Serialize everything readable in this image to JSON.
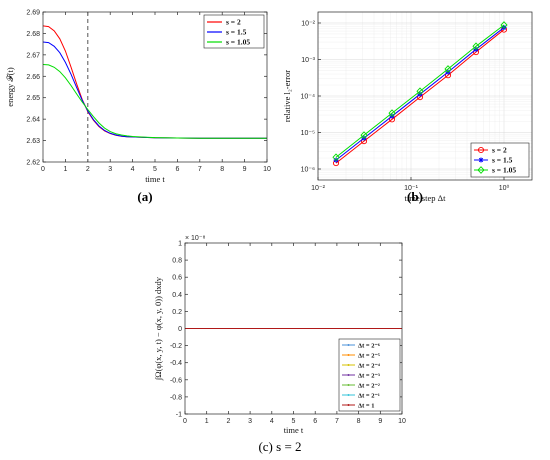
{
  "captions": {
    "a": "(a)",
    "b": "(b)",
    "c": "(c) s = 2"
  },
  "chart_data": [
    {
      "id": "a",
      "type": "line",
      "xlabel": "time t",
      "ylabel": "energy 𝓕(t)",
      "xlim": [
        0,
        10
      ],
      "ylim": [
        2.62,
        2.69
      ],
      "xticks": [
        0,
        1,
        2,
        3,
        4,
        5,
        6,
        7,
        8,
        9,
        10
      ],
      "yticks": [
        2.62,
        2.63,
        2.64,
        2.65,
        2.66,
        2.67,
        2.68,
        2.69
      ],
      "grid": false,
      "vline": 2,
      "legend_position": "top-right",
      "series": [
        {
          "name": "s = 2",
          "color": "#ff0000",
          "x": [
            0,
            0.25,
            0.5,
            0.75,
            1,
            1.25,
            1.5,
            1.75,
            2,
            2.25,
            2.5,
            2.75,
            3,
            3.25,
            3.5,
            3.75,
            4,
            4.5,
            5,
            6,
            7,
            8,
            9,
            10
          ],
          "y": [
            2.6835,
            2.6832,
            2.6812,
            2.6775,
            2.6718,
            2.6643,
            2.6565,
            2.6492,
            2.6435,
            2.6395,
            2.6365,
            2.6345,
            2.6333,
            2.6325,
            2.632,
            2.6318,
            2.6317,
            2.6315,
            2.6313,
            2.6312,
            2.6311,
            2.6311,
            2.6311,
            2.6311
          ]
        },
        {
          "name": "s = 1.5",
          "color": "#0000ff",
          "x": [
            0,
            0.25,
            0.5,
            0.75,
            1,
            1.25,
            1.5,
            1.75,
            2,
            2.25,
            2.5,
            2.75,
            3,
            3.25,
            3.5,
            3.75,
            4,
            4.5,
            5,
            6,
            7,
            8,
            9,
            10
          ],
          "y": [
            2.676,
            2.6757,
            2.674,
            2.671,
            2.6665,
            2.661,
            2.6548,
            2.6488,
            2.6438,
            2.6398,
            2.6368,
            2.6347,
            2.6334,
            2.6326,
            2.6321,
            2.6318,
            2.6317,
            2.6315,
            2.6313,
            2.6312,
            2.6311,
            2.6311,
            2.6311,
            2.6311
          ]
        },
        {
          "name": "s = 1.05",
          "color": "#00dd00",
          "x": [
            0,
            0.25,
            0.5,
            0.75,
            1,
            1.25,
            1.5,
            1.75,
            2,
            2.25,
            2.5,
            2.75,
            3,
            3.25,
            3.5,
            3.75,
            4,
            4.5,
            5,
            6,
            7,
            8,
            9,
            10
          ],
          "y": [
            2.6655,
            2.6653,
            2.6642,
            2.6622,
            2.6593,
            2.6557,
            2.6518,
            2.648,
            2.6445,
            2.6412,
            2.6382,
            2.6358,
            2.6342,
            2.6332,
            2.6326,
            2.6322,
            2.6319,
            2.6316,
            2.6314,
            2.6312,
            2.6311,
            2.6311,
            2.6311,
            2.6311
          ]
        }
      ]
    },
    {
      "id": "b",
      "type": "line",
      "xscale": "log",
      "yscale": "log",
      "xlabel": "time step Δt",
      "ylabel": "relative l₂-error",
      "xlim": [
        0.01,
        2
      ],
      "ylim": [
        5e-07,
        0.02
      ],
      "xticks": [
        0.01,
        0.1,
        1
      ],
      "xtick_labels": [
        "10⁻²",
        "10⁻¹",
        "10⁰"
      ],
      "yticks": [
        1e-06,
        1e-05,
        0.0001,
        0.001,
        0.01
      ],
      "ytick_labels": [
        "10⁻⁶",
        "10⁻⁵",
        "10⁻⁴",
        "10⁻³",
        "10⁻²"
      ],
      "grid": true,
      "legend_position": "bottom-right",
      "series": [
        {
          "name": "s = 2",
          "color": "#ff0000",
          "marker": "circle",
          "x": [
            0.015625,
            0.03125,
            0.0625,
            0.125,
            0.25,
            0.5,
            1
          ],
          "y": [
            1.45e-06,
            5.8e-06,
            2.3e-05,
            9.3e-05,
            0.00037,
            0.0016,
            0.0066
          ]
        },
        {
          "name": "s = 1.5",
          "color": "#0000ff",
          "marker": "star",
          "x": [
            0.015625,
            0.03125,
            0.0625,
            0.125,
            0.25,
            0.5,
            1
          ],
          "y": [
            1.75e-06,
            7e-06,
            2.8e-05,
            0.000112,
            0.00045,
            0.0019,
            0.0075
          ]
        },
        {
          "name": "s = 1.05",
          "color": "#00dd00",
          "marker": "diamond",
          "x": [
            0.015625,
            0.03125,
            0.0625,
            0.125,
            0.25,
            0.5,
            1
          ],
          "y": [
            2.1e-06,
            8.5e-06,
            3.4e-05,
            0.000135,
            0.00055,
            0.0023,
            0.0088
          ]
        }
      ]
    },
    {
      "id": "c",
      "type": "line",
      "xlabel": "time t",
      "ylabel": "∫Ω(φ(x, y, t) − φ(x, y, 0)) dxdy",
      "y_multiplier": "× 10⁻⁸",
      "xlim": [
        0,
        10
      ],
      "ylim": [
        -1,
        1
      ],
      "xticks": [
        0,
        1,
        2,
        3,
        4,
        5,
        6,
        7,
        8,
        9,
        10
      ],
      "yticks": [
        -1,
        -0.8,
        -0.6,
        -0.4,
        -0.2,
        0,
        0.2,
        0.4,
        0.6,
        0.8,
        1
      ],
      "grid": false,
      "legend_position": "bottom-right",
      "series": [
        {
          "name": "Δt = 2⁻⁶",
          "color": "#4a90d9",
          "x": [
            0,
            10
          ],
          "y": [
            0,
            0
          ]
        },
        {
          "name": "Δt = 2⁻⁵",
          "color": "#ff8c00",
          "x": [
            0,
            10
          ],
          "y": [
            0,
            0
          ]
        },
        {
          "name": "Δt = 2⁻⁴",
          "color": "#d4c000",
          "x": [
            0,
            10
          ],
          "y": [
            0,
            0
          ]
        },
        {
          "name": "Δt = 2⁻³",
          "color": "#7030a0",
          "x": [
            0,
            10
          ],
          "y": [
            0,
            0
          ]
        },
        {
          "name": "Δt = 2⁻²",
          "color": "#66bb33",
          "x": [
            0,
            10
          ],
          "y": [
            0,
            0
          ]
        },
        {
          "name": "Δt = 2⁻¹",
          "color": "#33c3d8",
          "x": [
            0,
            10
          ],
          "y": [
            0,
            0
          ]
        },
        {
          "name": "Δt = 1",
          "color": "#b01818",
          "x": [
            0,
            10
          ],
          "y": [
            0,
            0
          ]
        }
      ]
    }
  ]
}
